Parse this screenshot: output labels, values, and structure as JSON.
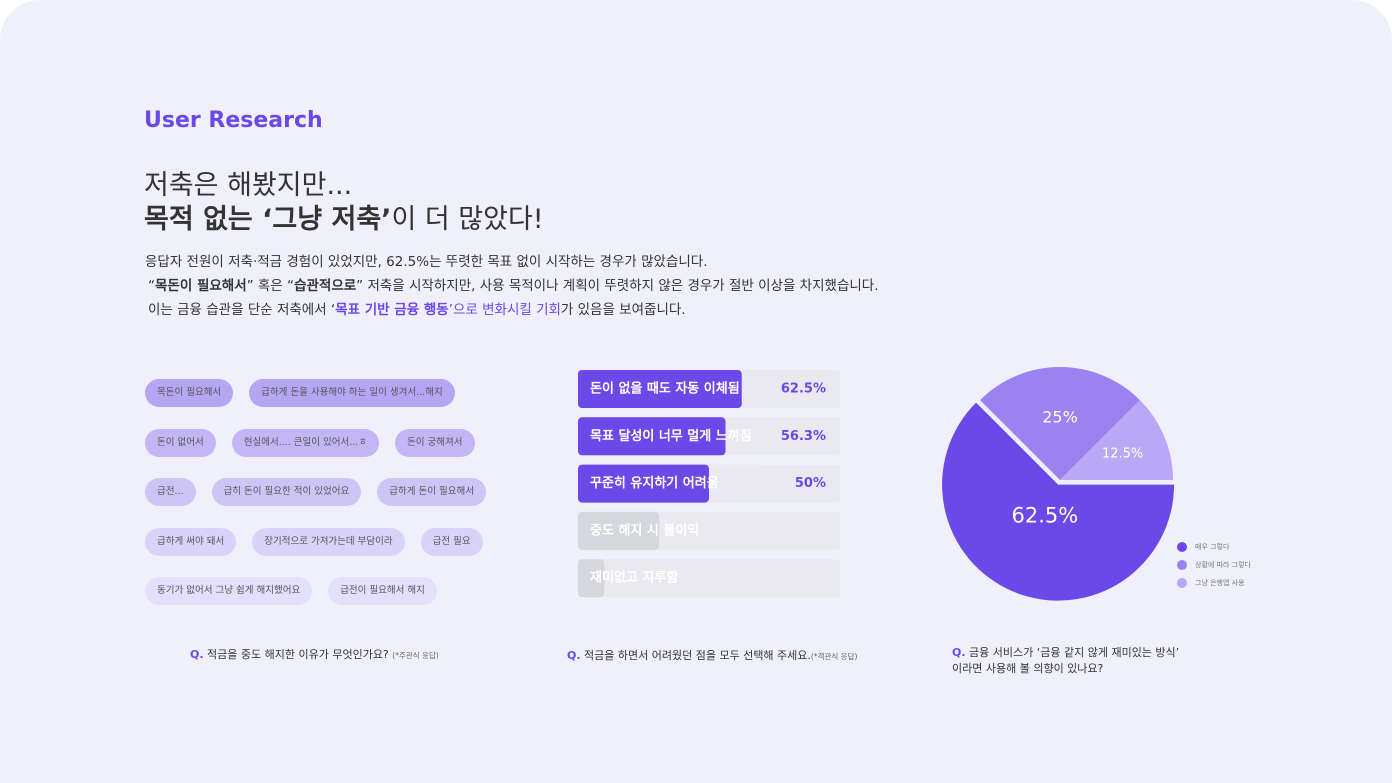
{
  "header": {
    "label": "User Research",
    "title_line1": "저축은 해봤지만...",
    "title_bold": "목적 없는 ‘그냥 저축’",
    "title_rest": "이 더 많았다!"
  },
  "description": {
    "line1": "응답자 전원이 저축·적금 경험이 있었지만, 62.5%는 뚜렷한 목표 없이 시작하는 경우가 많았습니다.",
    "line2": [
      "“",
      "목돈이 필요해서",
      "” 혹은 “",
      "습관적으로",
      "” 저축을 시작하지만, 사용 목적이나 계획이 뚜렷하지 않은 경우가 절반 이상을 차지했습니다."
    ],
    "line3": [
      "이는 금융 습관을 단순 저축에서 ‘",
      "목표 기반 금융 행동",
      "’으로 변화시킬 기회",
      "가 있음을 보여줍니다."
    ]
  },
  "tags": [
    [
      "목돈이 필요해서",
      "급하게 돈을 사용해야 하는 일이 생겨서...해지"
    ],
    [
      "돈이 없어서",
      "현실에서.... 큰일이 있어서...ㅎ",
      "돈이 궁해져서"
    ],
    [
      "급전...",
      "급히 돈이 필요한 적이 있었어요",
      "급하게 돈이 필요해서"
    ],
    [
      "급하게 써야 돼서",
      "장기적으로 가져가는데 부담이라",
      "급전 필요"
    ],
    [
      "동기가 없어서 그냥 쉽게 해지했어요",
      "급전이 필요해서 해지"
    ]
  ],
  "chart_data": [
    {
      "type": "bar",
      "orientation": "horizontal",
      "categories": [
        "돈이 없을 때도 자동 이체됨",
        "목표 달성이 너무 멀게 느껴짐",
        "꾸준히 유지하기 어려움",
        "중도 해지 시 불이익",
        "재미없고 지루함"
      ],
      "values": [
        62.5,
        56.3,
        50,
        31,
        10
      ],
      "value_labels": [
        "62.5%",
        "56.3%",
        "50%",
        null,
        null
      ],
      "colors": [
        "#6b48e8",
        "#6b48e8",
        "#6b48e8",
        "#d6d6dd",
        "#d6d6dd"
      ],
      "xlim": [
        0,
        100
      ]
    },
    {
      "type": "pie",
      "categories": [
        "매우 그렇다",
        "상황에 따라 그렇다",
        "그냥 은행앱 사용"
      ],
      "values": [
        62.5,
        25,
        12.5
      ],
      "value_labels": [
        "62.5%",
        "25%",
        "12.5%"
      ],
      "colors": [
        "#6b48e8",
        "#9a83ef",
        "#b9a8f5"
      ]
    }
  ],
  "questions": [
    {
      "q": "Q.",
      "text": "적금을 중도 해지한 이유가 무엇인가요?",
      "note": "(*주관식 응답)"
    },
    {
      "q": "Q.",
      "text": "적금을 하면서 어려웠던 점을 모두 선택해 주세요.",
      "note": "(*객관식 응답)"
    },
    {
      "q": "Q.",
      "text": "금융 서비스가 ‘금융 같지 않게 재미있는 방식’",
      "text2": "이라면 사용해 볼 의향이 있나요?"
    }
  ]
}
